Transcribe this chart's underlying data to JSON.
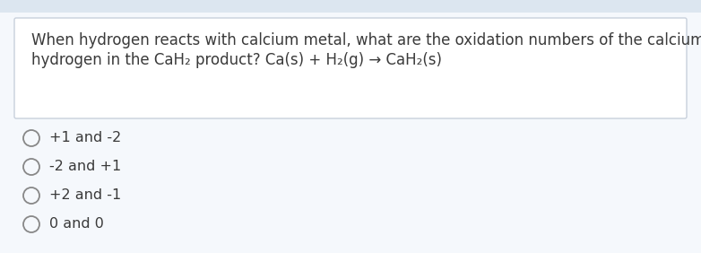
{
  "bg_outer_color": "#dce6f0",
  "bg_main_color": "#f5f8fc",
  "question_box_color": "#ffffff",
  "question_box_border": "#c8d0dc",
  "question_line1": "When hydrogen reacts with calcium metal, what are the oxidation numbers of the calcium  and",
  "question_line2": "hydrogen in the CaH₂ product? Ca(s) + H₂(g) → CaH₂(s)",
  "options": [
    "+1 and -2",
    "-2 and +1",
    "+2 and -1",
    "0 and 0"
  ],
  "text_color": "#3a3a3a",
  "font_size_question": 12.0,
  "font_size_options": 11.5,
  "circle_color": "#888888",
  "figsize": [
    7.82,
    2.82
  ],
  "dpi": 100
}
